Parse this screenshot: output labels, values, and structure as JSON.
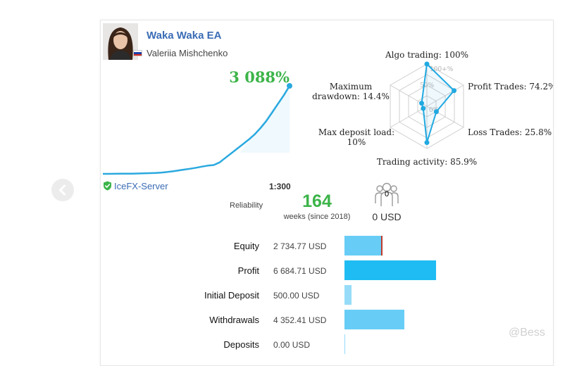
{
  "profile": {
    "signal_name": "Waka Waka EA",
    "author": "Valeriia Mishchenko",
    "growth": "3 088%",
    "flag_colors": [
      "#ffffff",
      "#1c3fa8",
      "#d52b1e"
    ]
  },
  "radar": {
    "labels": [
      {
        "key": "algo",
        "lines": [
          "Algo trading: 100%"
        ]
      },
      {
        "key": "profit",
        "lines": [
          "Profit Trades: 74.2%"
        ]
      },
      {
        "key": "loss",
        "lines": [
          "Loss Trades: 25.8%"
        ]
      },
      {
        "key": "activity",
        "lines": [
          "Trading activity: 85.9%"
        ]
      },
      {
        "key": "deposit",
        "lines": [
          "Max deposit load:",
          "10%"
        ]
      },
      {
        "key": "drawdown",
        "lines": [
          "Maximum",
          "drawdown: 14.4%"
        ]
      }
    ],
    "values": [
      100,
      74.2,
      25.8,
      85.9,
      10,
      14.4
    ],
    "ring_labels": [
      "100+%",
      "50%",
      "0%"
    ],
    "color": "#21a9e1"
  },
  "equity_curve": {
    "color": "#2aa9df",
    "values": [
      0,
      1,
      2,
      4,
      5,
      8,
      12,
      17,
      25,
      33,
      45,
      65,
      90,
      120,
      150,
      180,
      215,
      255,
      290,
      310,
      400,
      560,
      720,
      880,
      1040,
      1200,
      1380,
      1600,
      1850,
      2150,
      2450,
      2750,
      3088
    ]
  },
  "server": {
    "name": "IceFX-Server",
    "leverage": "1:300"
  },
  "reliability": {
    "label": "Reliability",
    "weeks": "164",
    "weeks_label": "weeks (since 2018)"
  },
  "subscribers": {
    "count": "0",
    "usd": "0 USD"
  },
  "stats": [
    {
      "label": "Equity",
      "value": "2 734.77 USD",
      "amount": 2734.77,
      "color": "#67cdf6",
      "marker": true
    },
    {
      "label": "Profit",
      "value": "6 684.71 USD",
      "amount": 6684.71,
      "color": "#1fbcf3",
      "marker": false
    },
    {
      "label": "Initial Deposit",
      "value": "500.00 USD",
      "amount": 500.0,
      "color": "#96dcf8",
      "marker": false
    },
    {
      "label": "Withdrawals",
      "value": "4 352.41 USD",
      "amount": 4352.41,
      "color": "#67cdf6",
      "marker": false
    },
    {
      "label": "Deposits",
      "value": "0.00 USD",
      "amount": 0.0,
      "color": "#96dcf8",
      "marker": false
    }
  ],
  "watermark": "@Bess"
}
